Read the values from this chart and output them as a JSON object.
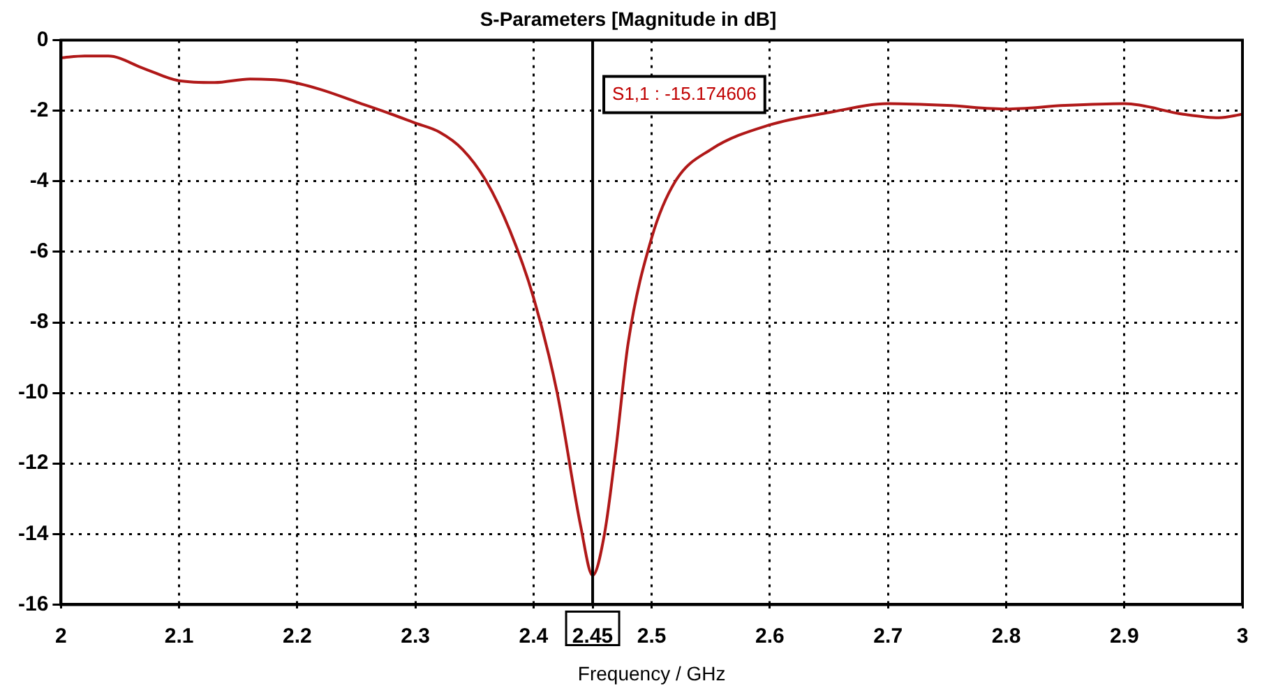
{
  "chart_data": {
    "type": "line",
    "title": "S-Parameters [Magnitude in dB]",
    "xlabel": "Frequency / GHz",
    "x": [
      2.0,
      2.02,
      2.04,
      2.07,
      2.1,
      2.13,
      2.16,
      2.19,
      2.22,
      2.25,
      2.28,
      2.3,
      2.32,
      2.34,
      2.36,
      2.38,
      2.4,
      2.42,
      2.44,
      2.45,
      2.46,
      2.47,
      2.48,
      2.5,
      2.52,
      2.55,
      2.6,
      2.65,
      2.7,
      2.75,
      2.8,
      2.85,
      2.9,
      2.95,
      2.98,
      3.0
    ],
    "series": [
      {
        "color": "#b01818",
        "values": [
          -0.5,
          -0.45,
          -0.45,
          -0.8,
          -1.15,
          -1.2,
          -1.1,
          -1.15,
          -1.4,
          -1.75,
          -2.1,
          -2.35,
          -2.6,
          -3.1,
          -4.0,
          -5.4,
          -7.3,
          -10.0,
          -13.8,
          -15.17,
          -14.0,
          -11.5,
          -8.6,
          -5.6,
          -4.0,
          -3.1,
          -2.4,
          -2.05,
          -1.8,
          -1.85,
          -1.95,
          -1.85,
          -1.8,
          -2.1,
          -2.2,
          -2.1
        ]
      }
    ],
    "xlim": [
      2,
      3
    ],
    "ylim": [
      -16,
      0
    ],
    "xticks": [
      2,
      2.1,
      2.2,
      2.3,
      2.4,
      2.45,
      2.5,
      2.6,
      2.7,
      2.8,
      2.9,
      3
    ],
    "yticks": [
      -16,
      -14,
      -12,
      -10,
      -8,
      -6,
      -4,
      -2,
      0
    ],
    "ref_lines": [
      {
        "axis": "x",
        "value": 2.45,
        "color": "#000000"
      }
    ],
    "annotations": [
      "S1,1 : -15.174606"
    ],
    "grid": true,
    "legend": false,
    "marker": "none",
    "line_style": "solid"
  }
}
